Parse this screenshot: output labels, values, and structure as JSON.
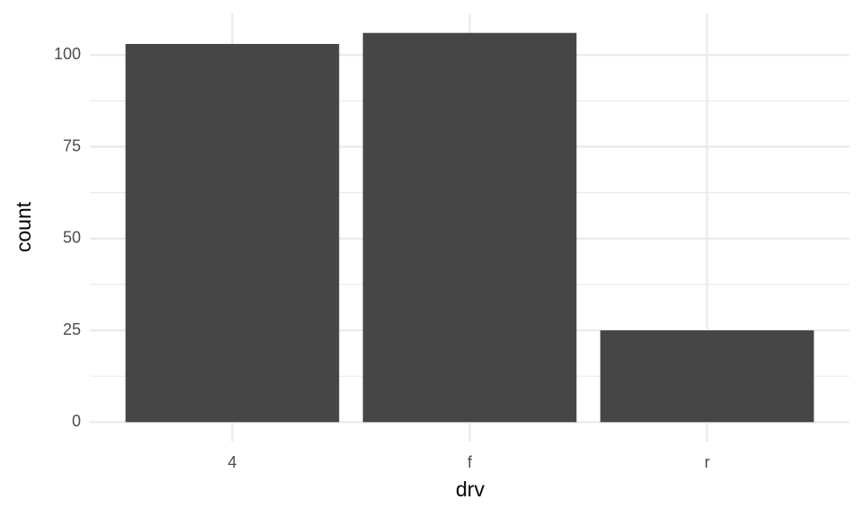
{
  "chart_data": {
    "type": "bar",
    "x_label": "drv",
    "y_label": "count",
    "categories": [
      "4",
      "f",
      "r"
    ],
    "values": [
      103,
      106,
      25
    ],
    "color": "#464646",
    "ylim": [
      -5.3,
      111.3
    ],
    "yticks": [
      0,
      25,
      50,
      75,
      100
    ],
    "y_minor_ticks": [
      12.5,
      37.5,
      62.5,
      87.5
    ],
    "grid": true
  }
}
